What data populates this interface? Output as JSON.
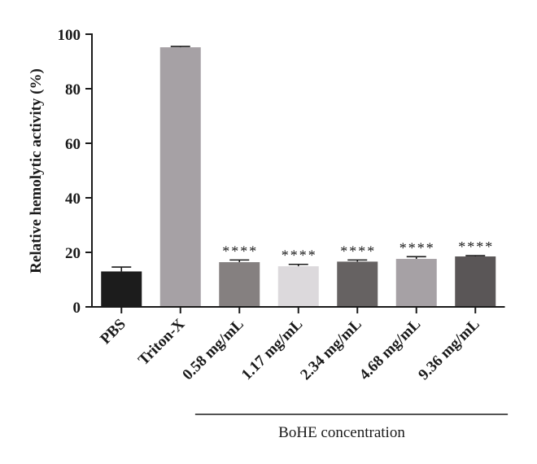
{
  "chart_data": {
    "type": "bar",
    "ylabel": "Relative hemolytic activity (%)",
    "xlabel": "",
    "ylim": [
      0,
      100
    ],
    "yticks": [
      0,
      20,
      40,
      60,
      80,
      100
    ],
    "categories": [
      "PBS",
      "Triton-X",
      "0.58 mg/mL",
      "1.17 mg/mL",
      "2.34 mg/mL",
      "4.68 mg/mL",
      "9.36 mg/mL"
    ],
    "values": [
      13.0,
      95.2,
      16.4,
      14.9,
      16.6,
      17.6,
      18.5
    ],
    "errors": [
      1.6,
      0.3,
      0.8,
      0.7,
      0.6,
      0.8,
      0.3
    ],
    "significance": [
      "",
      "",
      "****",
      "****",
      "****",
      "****",
      "****"
    ],
    "bar_colors": [
      "#1c1c1c",
      "#a6a1a5",
      "#858080",
      "#dcd9dc",
      "#666262",
      "#a6a1a5",
      "#5a5657"
    ],
    "group": {
      "label": "BoHE concentration",
      "from_index": 2,
      "to_index": 6
    },
    "grid": false,
    "legend": "none"
  }
}
